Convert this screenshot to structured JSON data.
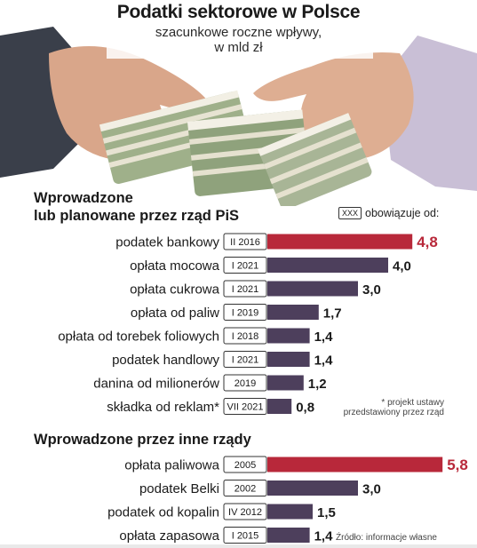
{
  "header": {
    "title": "Podatki sektorowe w Polsce",
    "subtitle_line1": "szacunkowe roczne wpływy,",
    "subtitle_line2": "w mld zł"
  },
  "legend": {
    "key": "XXX",
    "text": "obowiązuje od:"
  },
  "note": {
    "line1": "* projekt ustawy",
    "line2": "przedstawiony przez rząd"
  },
  "source": "Źródło: informacje własne",
  "colors": {
    "highlight": "#b8283a",
    "normal": "#4d3f5c",
    "label_highlight": "#b8283a",
    "label_normal": "#1a1a1a"
  },
  "chart_data": [
    {
      "type": "bar",
      "title": "Wprowadzone lub planowane przez rząd PiS",
      "title_line1": "Wprowadzone",
      "title_line2": "lub planowane przez rząd PiS",
      "unit": "mld zł",
      "categories": [
        "podatek bankowy",
        "opłata mocowa",
        "opłata cukrowa",
        "opłata od paliw",
        "opłata od torebek foliowych",
        "podatek handlowy",
        "danina od milionerów",
        "składka od reklam*"
      ],
      "dates": [
        "II 2016",
        "I 2021",
        "I 2021",
        "I 2019",
        "I 2018",
        "I 2021",
        "2019",
        "VII 2021"
      ],
      "values": [
        4.8,
        4.0,
        3.0,
        1.7,
        1.4,
        1.4,
        1.2,
        0.8
      ],
      "labels": [
        "4,8",
        "4,0",
        "3,0",
        "1,7",
        "1,4",
        "1,4",
        "1,2",
        "0,8"
      ],
      "highlight": [
        true,
        false,
        false,
        false,
        false,
        false,
        false,
        false
      ]
    },
    {
      "type": "bar",
      "title": "Wprowadzone przez inne rządy",
      "unit": "mld zł",
      "categories": [
        "opłata paliwowa",
        "podatek Belki",
        "podatek od kopalin",
        "opłata zapasowa"
      ],
      "dates": [
        "2005",
        "2002",
        "IV 2012",
        "I 2015"
      ],
      "values": [
        5.8,
        3.0,
        1.5,
        1.4
      ],
      "labels": [
        "5,8",
        "3,0",
        "1,5",
        "1,4"
      ],
      "highlight": [
        true,
        false,
        false,
        false
      ]
    }
  ]
}
